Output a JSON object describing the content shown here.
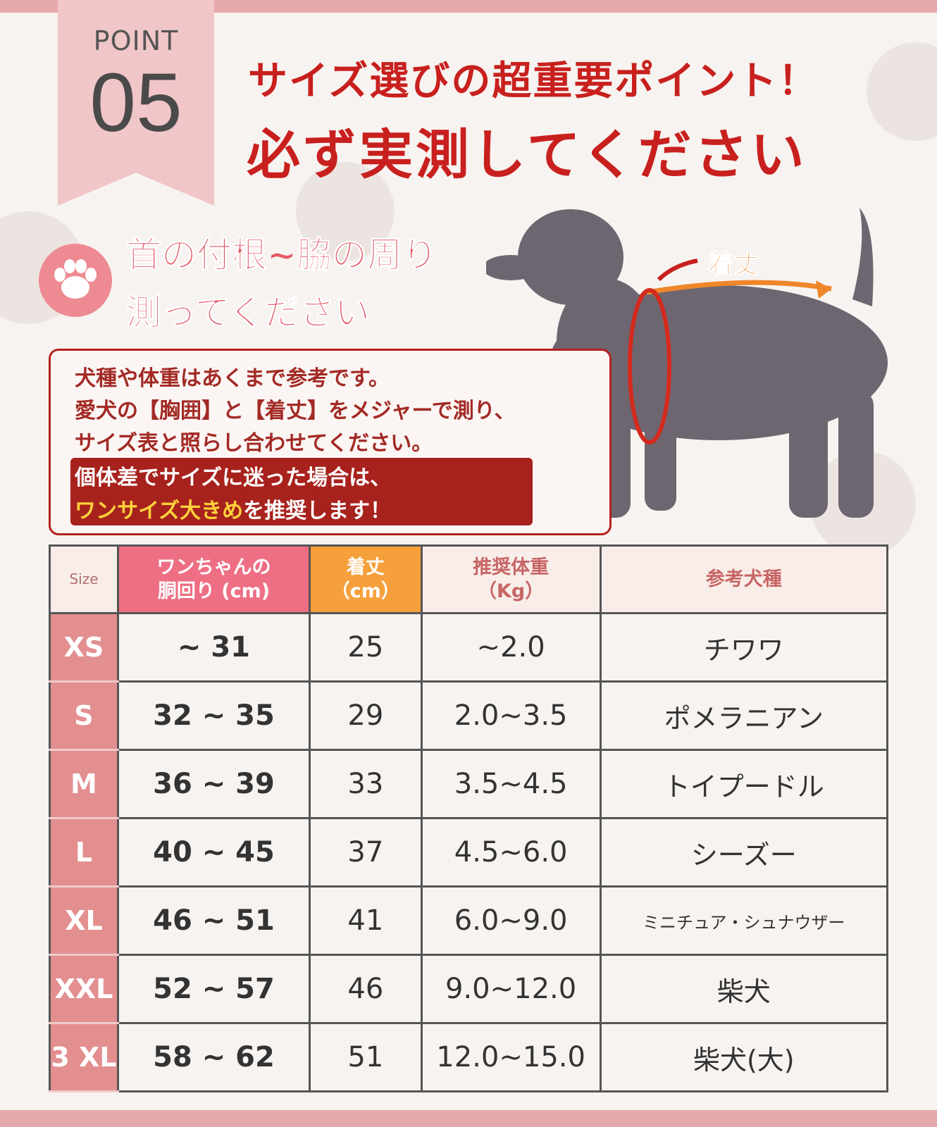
{
  "badge": {
    "label": "POINT",
    "number": "05"
  },
  "title": {
    "line1": "サイズ選びの超重要ポイント！",
    "line2": "必ず実測してください"
  },
  "subtitle": {
    "line1": "首の付根~脇の周り",
    "line2": "測ってください",
    "icon": "paw-icon"
  },
  "diagram": {
    "length_label": "着丈"
  },
  "note": {
    "lines": [
      "犬種や体重はあくまで参考です。",
      "愛犬の【胸囲】と【着丈】をメジャーで測り、",
      "サイズ表と照らし合わせてください。"
    ],
    "highlight_line1": "個体差でサイズに迷った場合は、",
    "highlight_em": "ワンサイズ大きめ",
    "highlight_rest": "を推奨します！"
  },
  "table": {
    "headers": {
      "size": "Size",
      "chest_1": "ワンちゃんの",
      "chest_2": "胴回り (cm)",
      "length_1": "着丈",
      "length_2": "（cm）",
      "weight_1": "推奨体重",
      "weight_2": "（Kg）",
      "breed": "参考犬種"
    },
    "rows": [
      {
        "size": "XS",
        "chest": "~ 31",
        "length": "25",
        "weight": "~2.0",
        "breed": "チワワ"
      },
      {
        "size": "S",
        "chest": "32 ~ 35",
        "length": "29",
        "weight": "2.0~3.5",
        "breed": "ポメラニアン"
      },
      {
        "size": "M",
        "chest": "36 ~ 39",
        "length": "33",
        "weight": "3.5~4.5",
        "breed": "トイプードル"
      },
      {
        "size": "L",
        "chest": "40 ~ 45",
        "length": "37",
        "weight": "4.5~6.0",
        "breed": "シーズー"
      },
      {
        "size": "XL",
        "chest": "46 ~ 51",
        "length": "41",
        "weight": "6.0~9.0",
        "breed": "ミニチュア・シュナウザー"
      },
      {
        "size": "XXL",
        "chest": "52 ~ 57",
        "length": "46",
        "weight": "9.0~12.0",
        "breed": "柴犬"
      },
      {
        "size": "3 XL",
        "chest": "58 ~ 62",
        "length": "51",
        "weight": "12.0~15.0",
        "breed": "柴犬(大)"
      }
    ]
  },
  "colors": {
    "title_red": "#c8201e",
    "pink": "#e38f90",
    "orange": "#f6a03c",
    "chest_header": "#ee6f84"
  }
}
